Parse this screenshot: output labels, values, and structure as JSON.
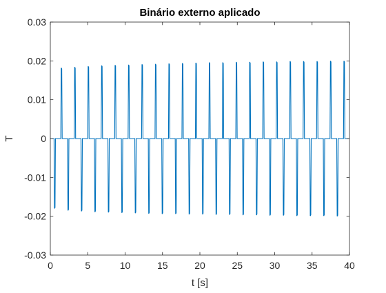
{
  "chart_data": {
    "type": "line",
    "title": "Binário externo aplicado",
    "xlabel": "t [s]",
    "ylabel": "T",
    "xlim": [
      0,
      40
    ],
    "ylim": [
      -0.03,
      0.03
    ],
    "xticks": [
      0,
      5,
      10,
      15,
      20,
      25,
      30,
      35,
      40
    ],
    "yticks": [
      -0.03,
      -0.02,
      -0.01,
      0,
      0.01,
      0.02,
      0.03
    ],
    "ytick_labels": [
      "-0.03",
      "-0.02",
      "-0.01",
      "0",
      "0.01",
      "0.02",
      "0.03"
    ],
    "grid": false,
    "legend": false,
    "box": true,
    "series": [
      {
        "color": "#0072BD",
        "spike_times": [
          0.5,
          1.4,
          2.3,
          3.2,
          4.1,
          5.0,
          5.9,
          6.8,
          7.7,
          8.6,
          9.5,
          10.4,
          11.3,
          12.2,
          13.1,
          14.0,
          14.9,
          15.8,
          16.7,
          17.6,
          18.5,
          19.4,
          20.3,
          21.2,
          22.1,
          23.0,
          23.9,
          24.8,
          25.7,
          26.6,
          27.5,
          28.4,
          29.3,
          30.2,
          31.1,
          32.0,
          32.9,
          33.8,
          34.7,
          35.6,
          36.5,
          37.4,
          38.3,
          39.2
        ],
        "spike_values": [
          -0.018,
          0.0182,
          -0.0185,
          0.0184,
          -0.0187,
          0.0186,
          -0.0189,
          0.0188,
          -0.019,
          0.0189,
          -0.0191,
          0.019,
          -0.0192,
          0.0191,
          -0.0193,
          0.0192,
          -0.0194,
          0.0193,
          -0.0194,
          0.0194,
          -0.0195,
          0.0195,
          -0.0195,
          0.0196,
          -0.0196,
          0.0196,
          -0.0196,
          0.0197,
          -0.0197,
          0.0197,
          -0.0197,
          0.0198,
          -0.0198,
          0.0198,
          -0.0198,
          0.0199,
          -0.0199,
          0.0199,
          -0.0199,
          0.0199,
          -0.0199,
          0.02,
          -0.02,
          0.02
        ],
        "baseline": 0
      }
    ]
  }
}
